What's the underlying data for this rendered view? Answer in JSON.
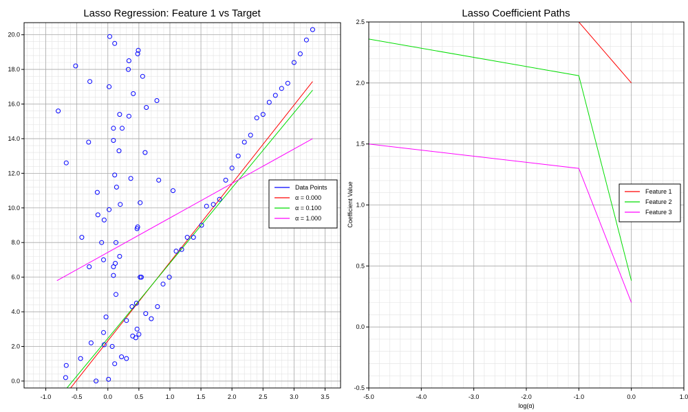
{
  "chart_data": [
    {
      "type": "scatter",
      "title": "Lasso Regression: Feature 1 vs Target",
      "xlabel": "",
      "ylabel": "",
      "xlim": [
        -1.35,
        3.75
      ],
      "ylim": [
        -0.4,
        20.7
      ],
      "xticks": [
        -1.0,
        -0.5,
        0.0,
        0.5,
        1.0,
        1.5,
        2.0,
        2.5,
        3.0,
        3.5
      ],
      "xtick_labels": [
        "-1.0",
        "-0.5",
        "0.0",
        "0.5",
        "1.0",
        "1.5",
        "2.0",
        "2.5",
        "3.0",
        "3.5"
      ],
      "yticks": [
        0,
        2,
        4,
        6,
        8,
        10,
        12,
        14,
        16,
        18,
        20
      ],
      "ytick_labels": [
        "0.0",
        "2.0",
        "4.0",
        "6.0",
        "8.0",
        "10.0",
        "12.0",
        "14.0",
        "16.0",
        "18.0",
        "20.0"
      ],
      "grid": true,
      "legend_position": "right",
      "points": {
        "name": "Data Points",
        "color": "#0000ff",
        "x": [
          0.03,
          0.11,
          -0.52,
          0.49,
          0.48,
          0.34,
          0.33,
          0.56,
          -0.29,
          0.02,
          0.41,
          0.79,
          -0.8,
          0.62,
          0.19,
          0.34,
          0.09,
          0.23,
          -0.31,
          0.09,
          0.18,
          0.6,
          -0.67,
          0.37,
          0.11,
          0.82,
          1.05,
          0.14,
          -0.17,
          0.52,
          0.2,
          0.02,
          -0.16,
          -0.06,
          0.48,
          0.47,
          -0.42,
          -0.1,
          0.13,
          1.1,
          1.19,
          0.19,
          -0.07,
          0.12,
          -0.3,
          0.09,
          0.52,
          0.54,
          0.09,
          0.99,
          0.89,
          0.13,
          0.46,
          0.8,
          0.39,
          0.61,
          -0.03,
          0.3,
          0.7,
          0.47,
          -0.07,
          0.5,
          0.4,
          0.45,
          -0.27,
          -0.06,
          0.07,
          -0.44,
          0.22,
          0.3,
          0.11,
          -0.67,
          0.01,
          -0.68,
          -0.19,
          1.28,
          1.38,
          1.51,
          1.59,
          1.7,
          1.8,
          1.9,
          2.0,
          2.1,
          2.2,
          2.3,
          2.4,
          2.5,
          2.6,
          2.7,
          2.8,
          2.9,
          3.0,
          3.1,
          3.2,
          3.3
        ],
        "y": [
          19.9,
          19.5,
          18.2,
          19.1,
          18.9,
          18.5,
          18.0,
          17.6,
          17.3,
          17.0,
          16.6,
          16.2,
          15.6,
          15.8,
          15.4,
          15.3,
          14.6,
          14.6,
          13.8,
          13.9,
          13.3,
          13.2,
          12.6,
          11.7,
          11.9,
          11.6,
          11.0,
          11.2,
          10.9,
          10.3,
          10.2,
          9.9,
          9.6,
          9.3,
          8.9,
          8.8,
          8.3,
          8.0,
          8.0,
          7.5,
          7.6,
          7.2,
          7.0,
          6.8,
          6.6,
          6.6,
          6.0,
          6.0,
          6.1,
          6.0,
          5.6,
          5.0,
          4.5,
          4.3,
          4.3,
          3.9,
          3.7,
          3.5,
          3.6,
          3.0,
          2.8,
          2.7,
          2.6,
          2.5,
          2.2,
          2.1,
          2.0,
          1.3,
          1.4,
          1.3,
          1.0,
          0.9,
          0.1,
          0.2,
          0.0,
          8.3,
          8.3,
          9.0,
          10.1,
          10.2,
          10.5,
          11.6,
          12.3,
          13.0,
          13.8,
          14.2,
          15.2,
          15.4,
          16.1,
          16.5,
          16.9,
          17.2,
          18.4,
          18.9,
          19.7,
          20.3
        ]
      },
      "series": [
        {
          "name": "α = 0.000",
          "color": "#ff0000",
          "x": [
            -0.82,
            3.3
          ],
          "y": [
            -1.4,
            17.3
          ]
        },
        {
          "name": "α = 0.100",
          "color": "#00dd00",
          "x": [
            -0.82,
            3.3
          ],
          "y": [
            -1.1,
            16.8
          ]
        },
        {
          "name": "α = 1.000",
          "color": "#ff00ff",
          "x": [
            -0.82,
            3.3
          ],
          "y": [
            5.8,
            14.0
          ]
        }
      ]
    },
    {
      "type": "line",
      "title": "Lasso Coefficient Paths",
      "xlabel": "log(α)",
      "ylabel": "Coefficient Value",
      "xlim": [
        -5.0,
        1.0
      ],
      "ylim": [
        -0.5,
        2.5
      ],
      "xticks": [
        -5.0,
        -4.0,
        -3.0,
        -2.0,
        -1.0,
        0.0,
        1.0
      ],
      "xtick_labels": [
        "-5.0",
        "-4.0",
        "-3.0",
        "-2.0",
        "-1.0",
        "0.0",
        "1.0"
      ],
      "yticks": [
        -0.5,
        0.0,
        0.5,
        1.0,
        1.5,
        2.0,
        2.5
      ],
      "ytick_labels": [
        "-0.5",
        "0.0",
        "0.5",
        "1.0",
        "1.5",
        "2.0",
        "2.5"
      ],
      "grid": true,
      "legend_position": "right",
      "x": [
        -5.0,
        -1.0,
        0.0
      ],
      "series": [
        {
          "name": "Feature 1",
          "color": "#ff0000",
          "values": [
            2.5,
            2.5,
            2.0
          ]
        },
        {
          "name": "Feature 2",
          "color": "#00dd00",
          "values": [
            2.36,
            2.06,
            0.38
          ]
        },
        {
          "name": "Feature 3",
          "color": "#ff00ff",
          "values": [
            1.5,
            1.3,
            0.2
          ]
        }
      ]
    }
  ]
}
